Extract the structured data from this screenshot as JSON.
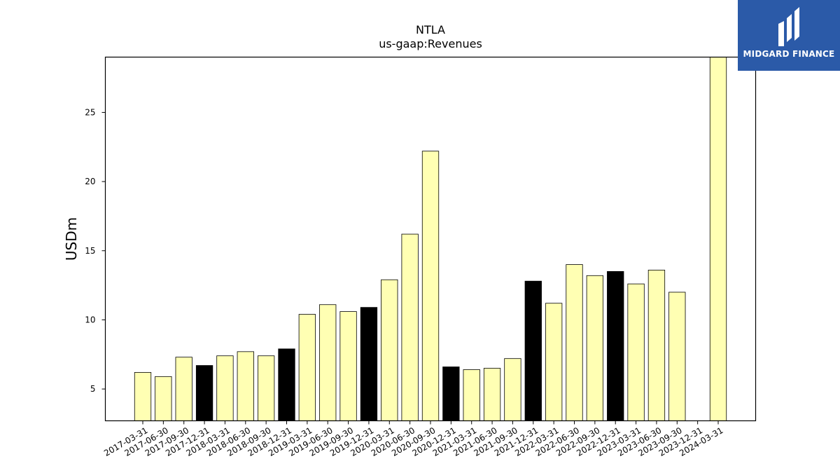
{
  "brand": {
    "name": "MIDGARD FINANCE",
    "color": "#2b5aa8"
  },
  "chart_data": {
    "type": "bar",
    "title": "NTLA",
    "subtitle": "us-gaap:Revenues",
    "ylabel": "USDm",
    "xlabel": "",
    "ylim": [
      2.7,
      29
    ],
    "yticks": [
      5,
      10,
      15,
      20,
      25
    ],
    "grid": false,
    "colors": {
      "default": "#ffffb3",
      "highlight": "#000000",
      "edge": "#000000"
    },
    "categories": [
      "2017-03-31",
      "2017-06-30",
      "2017-09-30",
      "2017-12-31",
      "2018-03-31",
      "2018-06-30",
      "2018-09-30",
      "2018-12-31",
      "2019-03-31",
      "2019-06-30",
      "2019-09-30",
      "2019-12-31",
      "2020-03-31",
      "2020-06-30",
      "2020-09-30",
      "2020-12-31",
      "2021-03-31",
      "2021-06-30",
      "2021-09-30",
      "2021-12-31",
      "2022-03-31",
      "2022-06-30",
      "2022-09-30",
      "2022-12-31",
      "2023-03-31",
      "2023-06-30",
      "2023-09-30",
      "2023-12-31",
      "2024-03-31"
    ],
    "values": [
      6.2,
      5.9,
      7.3,
      6.7,
      7.4,
      7.7,
      7.4,
      7.9,
      10.4,
      11.1,
      10.6,
      10.9,
      12.9,
      16.2,
      22.2,
      6.6,
      6.4,
      6.5,
      7.2,
      12.8,
      11.2,
      14.0,
      13.2,
      13.5,
      12.6,
      13.6,
      12.0,
      null,
      29.0
    ],
    "highlight": [
      false,
      false,
      false,
      true,
      false,
      false,
      false,
      true,
      false,
      false,
      false,
      true,
      false,
      false,
      false,
      true,
      false,
      false,
      false,
      true,
      false,
      false,
      false,
      true,
      false,
      false,
      false,
      false,
      false
    ]
  }
}
